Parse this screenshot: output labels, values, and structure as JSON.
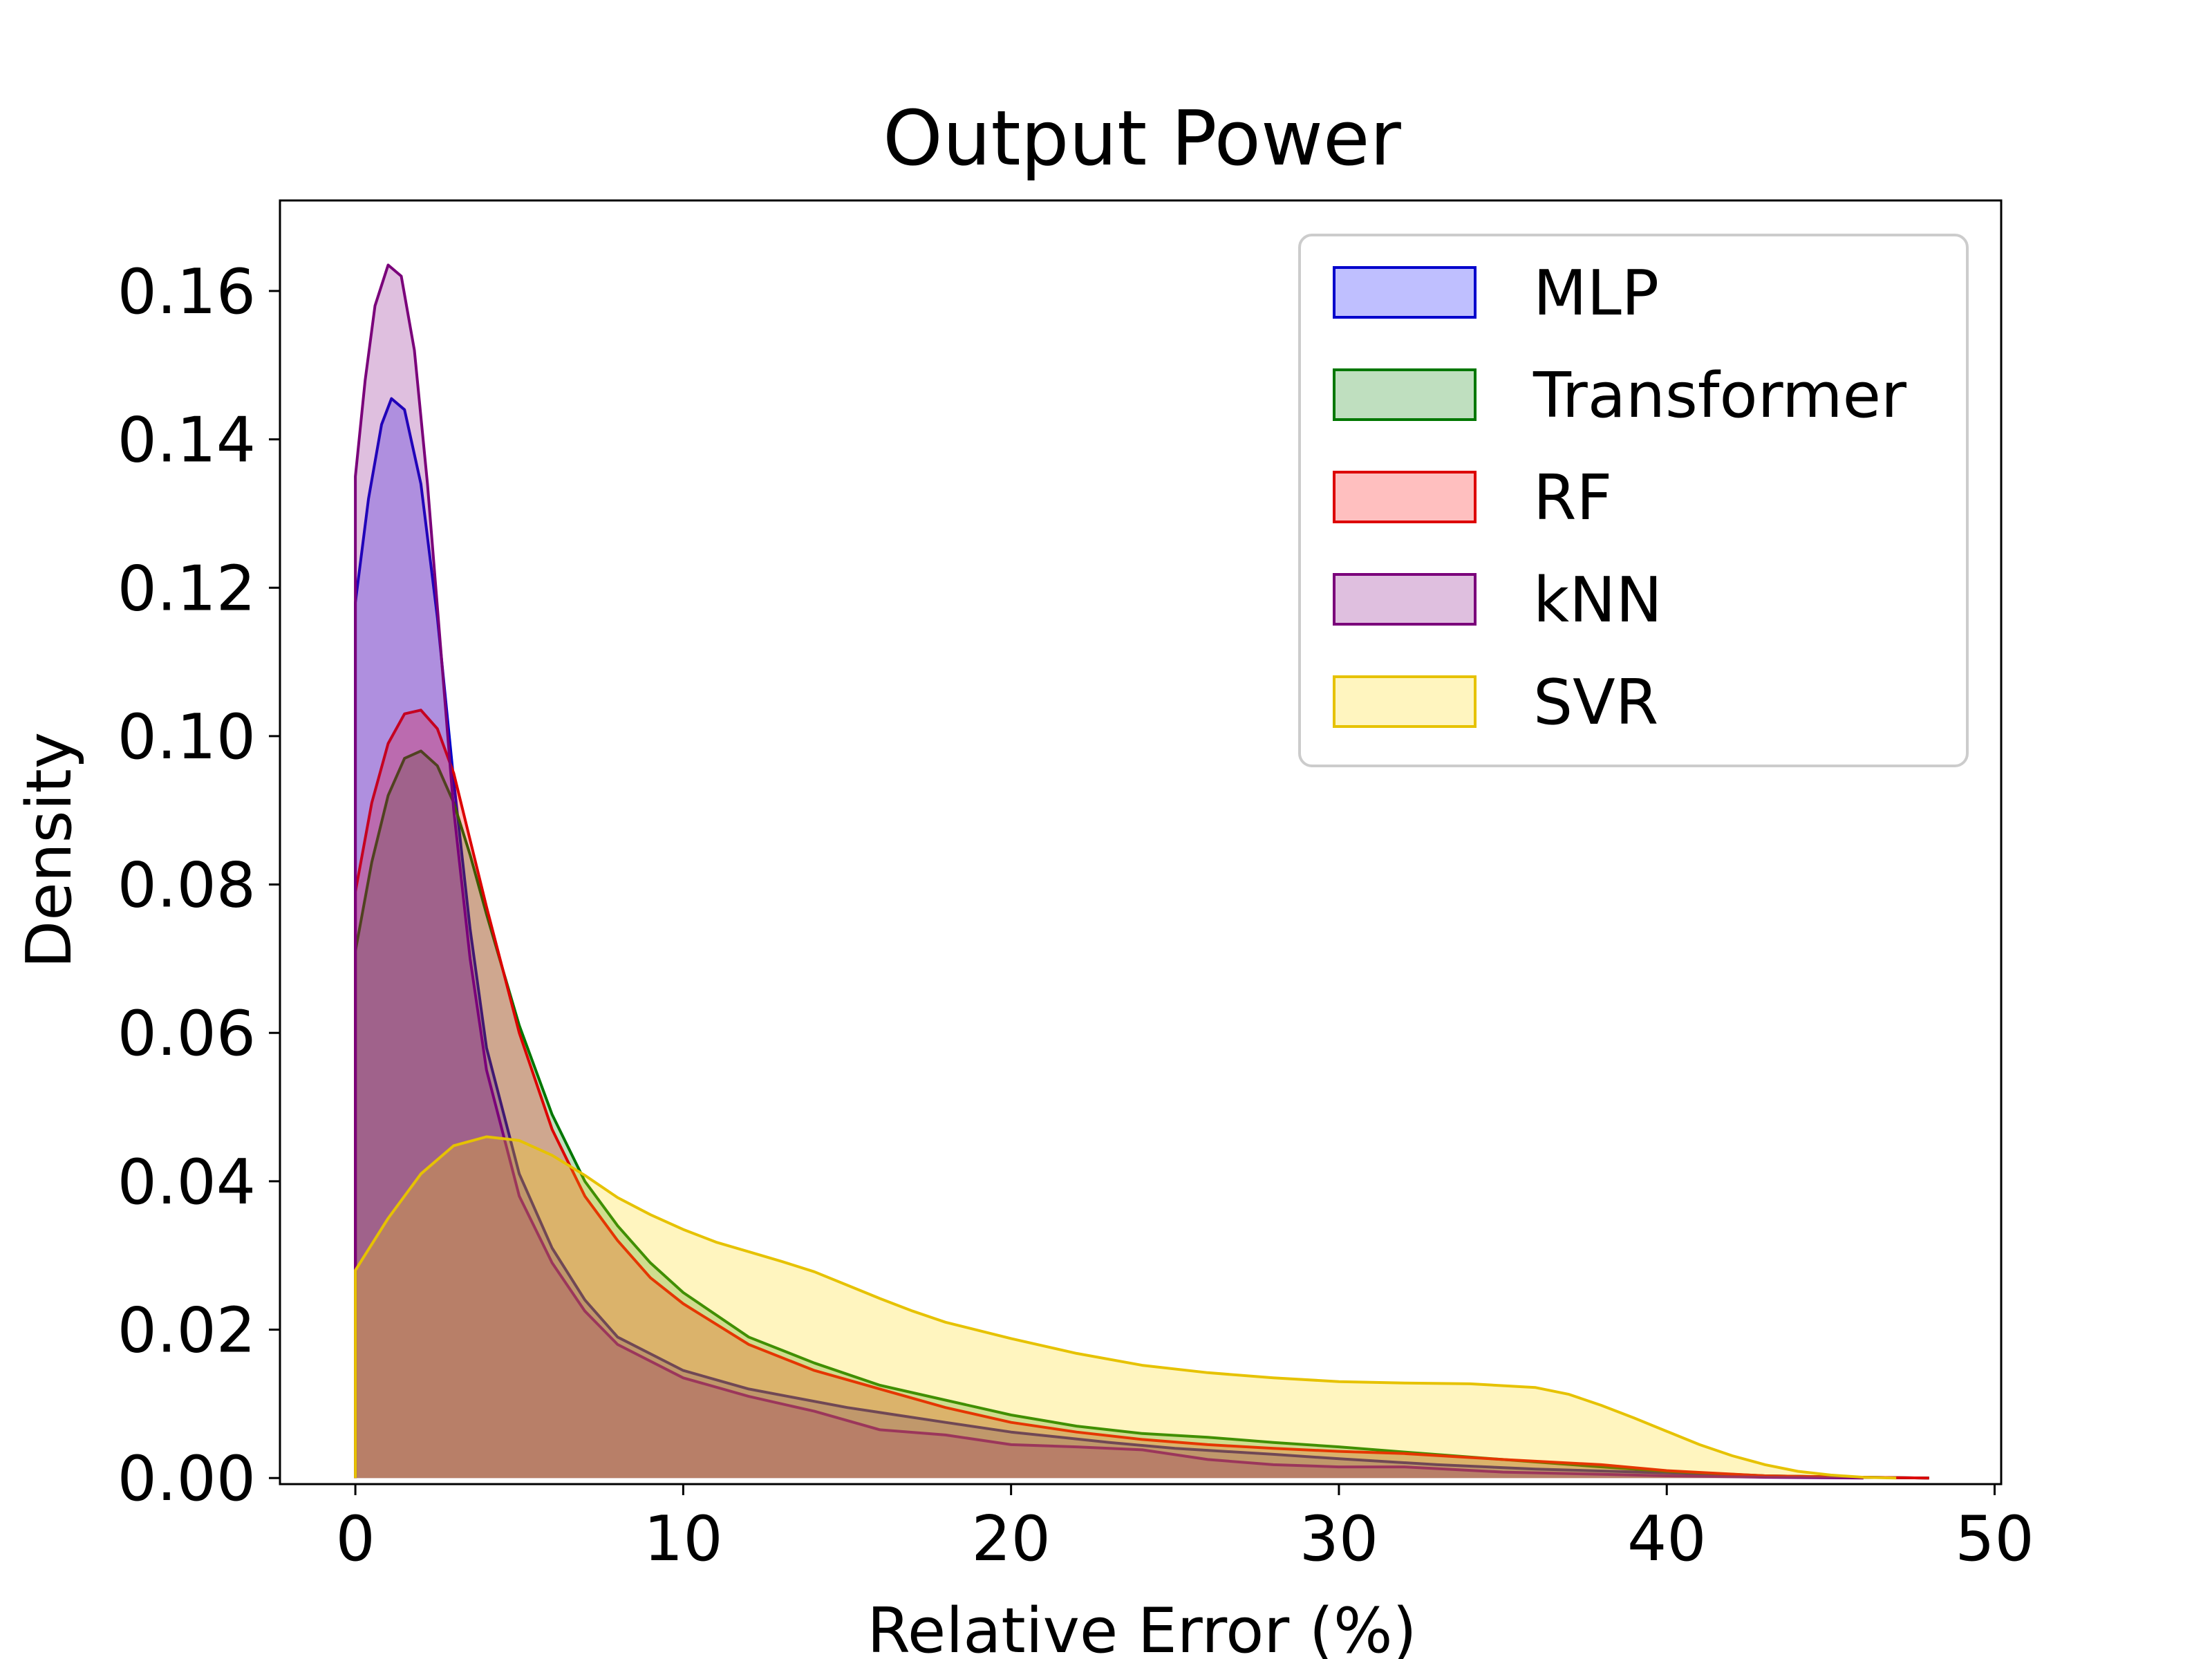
{
  "chart_data": {
    "type": "area",
    "title": "Output Power",
    "xlabel": "Relative Error (%)",
    "ylabel": "Density",
    "xlim": [
      -2.3,
      50.2
    ],
    "ylim": [
      -0.00082,
      0.1722
    ],
    "xticks": [
      0,
      10,
      20,
      30,
      40,
      50
    ],
    "xtick_labels": [
      "0",
      "10",
      "20",
      "30",
      "40",
      "50"
    ],
    "yticks": [
      0.0,
      0.02,
      0.04,
      0.06,
      0.08,
      0.1,
      0.12,
      0.14,
      0.16
    ],
    "ytick_labels": [
      "0.00",
      "0.02",
      "0.04",
      "0.06",
      "0.08",
      "0.10",
      "0.12",
      "0.14",
      "0.16"
    ],
    "grid": false,
    "legend_position": "upper right",
    "series": [
      {
        "name": "MLP",
        "color": "#0000cc",
        "fill": "#0000ff",
        "points": [
          [
            0,
            0.118
          ],
          [
            0.4,
            0.132
          ],
          [
            0.8,
            0.142
          ],
          [
            1.1,
            0.1455
          ],
          [
            1.5,
            0.144
          ],
          [
            2.0,
            0.134
          ],
          [
            2.5,
            0.116
          ],
          [
            3.0,
            0.094
          ],
          [
            3.5,
            0.074
          ],
          [
            4.0,
            0.058
          ],
          [
            5.0,
            0.041
          ],
          [
            6.0,
            0.031
          ],
          [
            7.0,
            0.024
          ],
          [
            8.0,
            0.019
          ],
          [
            10.0,
            0.0145
          ],
          [
            12.0,
            0.012
          ],
          [
            15.0,
            0.0095
          ],
          [
            18.0,
            0.0075
          ],
          [
            20.0,
            0.0062
          ],
          [
            23.0,
            0.0048
          ],
          [
            25.0,
            0.004
          ],
          [
            28.0,
            0.0032
          ],
          [
            30.0,
            0.0026
          ],
          [
            33.0,
            0.0018
          ],
          [
            36.0,
            0.0012
          ],
          [
            40.0,
            0.0007
          ],
          [
            43.0,
            0.0003
          ],
          [
            46.0,
            0.0001
          ],
          [
            48.0,
            0.0
          ]
        ]
      },
      {
        "name": "Transformer",
        "color": "#007700",
        "fill": "#008000",
        "points": [
          [
            0,
            0.071
          ],
          [
            0.5,
            0.083
          ],
          [
            1.0,
            0.092
          ],
          [
            1.5,
            0.097
          ],
          [
            2.0,
            0.098
          ],
          [
            2.5,
            0.096
          ],
          [
            3.0,
            0.091
          ],
          [
            3.5,
            0.084
          ],
          [
            4.0,
            0.076
          ],
          [
            5.0,
            0.061
          ],
          [
            6.0,
            0.049
          ],
          [
            7.0,
            0.04
          ],
          [
            8.0,
            0.034
          ],
          [
            9.0,
            0.029
          ],
          [
            10.0,
            0.025
          ],
          [
            12.0,
            0.019
          ],
          [
            14.0,
            0.0155
          ],
          [
            16.0,
            0.0125
          ],
          [
            18.0,
            0.0105
          ],
          [
            20.0,
            0.0085
          ],
          [
            22.0,
            0.007
          ],
          [
            24.0,
            0.006
          ],
          [
            26.0,
            0.0055
          ],
          [
            28.0,
            0.0048
          ],
          [
            30.0,
            0.0042
          ],
          [
            32.0,
            0.0035
          ],
          [
            35.0,
            0.0025
          ],
          [
            38.0,
            0.0015
          ],
          [
            40.0,
            0.0009
          ],
          [
            43.0,
            0.0003
          ],
          [
            46.0,
            0.0001
          ],
          [
            48.0,
            0.0
          ]
        ]
      },
      {
        "name": "RF",
        "color": "#dd0000",
        "fill": "#ff0000",
        "points": [
          [
            0,
            0.079
          ],
          [
            0.5,
            0.091
          ],
          [
            1.0,
            0.099
          ],
          [
            1.5,
            0.103
          ],
          [
            2.0,
            0.1035
          ],
          [
            2.5,
            0.101
          ],
          [
            3.0,
            0.095
          ],
          [
            3.5,
            0.086
          ],
          [
            4.0,
            0.077
          ],
          [
            5.0,
            0.06
          ],
          [
            6.0,
            0.047
          ],
          [
            7.0,
            0.038
          ],
          [
            8.0,
            0.032
          ],
          [
            9.0,
            0.027
          ],
          [
            10.0,
            0.0235
          ],
          [
            12.0,
            0.018
          ],
          [
            14.0,
            0.0145
          ],
          [
            16.0,
            0.012
          ],
          [
            18.0,
            0.0095
          ],
          [
            20.0,
            0.0075
          ],
          [
            22.0,
            0.0062
          ],
          [
            24.0,
            0.0052
          ],
          [
            26.0,
            0.0045
          ],
          [
            28.0,
            0.004
          ],
          [
            30.0,
            0.0036
          ],
          [
            32.0,
            0.0033
          ],
          [
            35.0,
            0.0025
          ],
          [
            38.0,
            0.0018
          ],
          [
            40.0,
            0.001
          ],
          [
            43.0,
            0.0003
          ],
          [
            46.0,
            0.0001
          ],
          [
            48.0,
            0.0
          ]
        ]
      },
      {
        "name": "kNN",
        "color": "#7a007a",
        "fill": "#800080",
        "points": [
          [
            0,
            0.135
          ],
          [
            0.3,
            0.148
          ],
          [
            0.6,
            0.158
          ],
          [
            1.0,
            0.1635
          ],
          [
            1.4,
            0.162
          ],
          [
            1.8,
            0.152
          ],
          [
            2.2,
            0.134
          ],
          [
            2.6,
            0.112
          ],
          [
            3.0,
            0.09
          ],
          [
            3.5,
            0.07
          ],
          [
            4.0,
            0.055
          ],
          [
            5.0,
            0.038
          ],
          [
            6.0,
            0.029
          ],
          [
            7.0,
            0.0225
          ],
          [
            8.0,
            0.018
          ],
          [
            10.0,
            0.0135
          ],
          [
            12.0,
            0.011
          ],
          [
            14.0,
            0.009
          ],
          [
            16.0,
            0.0065
          ],
          [
            18.0,
            0.0058
          ],
          [
            20.0,
            0.0045
          ],
          [
            22.0,
            0.0042
          ],
          [
            24.0,
            0.0038
          ],
          [
            26.0,
            0.0025
          ],
          [
            28.0,
            0.0018
          ],
          [
            30.0,
            0.0015
          ],
          [
            32.0,
            0.0015
          ],
          [
            35.0,
            0.0008
          ],
          [
            38.0,
            0.0005
          ],
          [
            40.0,
            0.0003
          ],
          [
            43.0,
            0.0001
          ],
          [
            46.0,
            0.0
          ]
        ]
      },
      {
        "name": "SVR",
        "color": "#e6c200",
        "fill": "#ffd700",
        "points": [
          [
            0,
            0.028
          ],
          [
            1.0,
            0.035
          ],
          [
            2.0,
            0.041
          ],
          [
            3.0,
            0.0448
          ],
          [
            4.0,
            0.046
          ],
          [
            5.0,
            0.0455
          ],
          [
            6.0,
            0.0435
          ],
          [
            7.0,
            0.0408
          ],
          [
            8.0,
            0.0378
          ],
          [
            9.0,
            0.0355
          ],
          [
            10.0,
            0.0335
          ],
          [
            11.0,
            0.0318
          ],
          [
            12.0,
            0.0305
          ],
          [
            13.0,
            0.0292
          ],
          [
            14.0,
            0.0278
          ],
          [
            15.0,
            0.026
          ],
          [
            16.0,
            0.0242
          ],
          [
            17.0,
            0.0225
          ],
          [
            18.0,
            0.021
          ],
          [
            20.0,
            0.0188
          ],
          [
            22.0,
            0.0168
          ],
          [
            24.0,
            0.0152
          ],
          [
            26.0,
            0.0142
          ],
          [
            28.0,
            0.0135
          ],
          [
            30.0,
            0.013
          ],
          [
            32.0,
            0.0128
          ],
          [
            34.0,
            0.0127
          ],
          [
            36.0,
            0.0122
          ],
          [
            37.0,
            0.0113
          ],
          [
            38.0,
            0.0098
          ],
          [
            39.0,
            0.0081
          ],
          [
            40.0,
            0.0063
          ],
          [
            41.0,
            0.0045
          ],
          [
            42.0,
            0.003
          ],
          [
            43.0,
            0.0018
          ],
          [
            44.0,
            0.0009
          ],
          [
            45.0,
            0.0004
          ],
          [
            46.0,
            0.0001
          ],
          [
            47.0,
            0.0
          ]
        ]
      }
    ]
  }
}
